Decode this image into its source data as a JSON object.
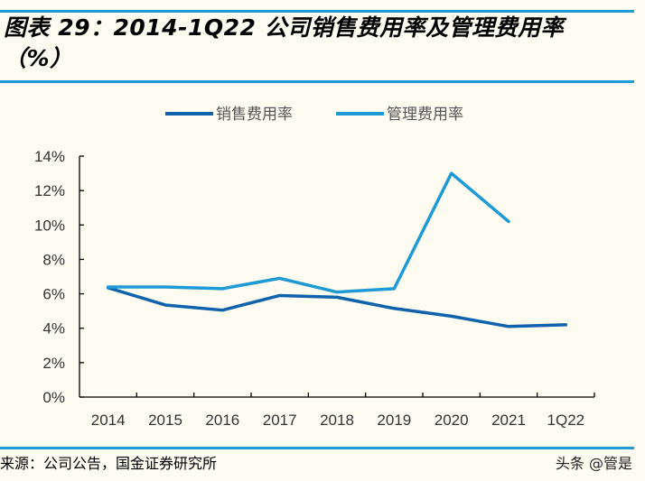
{
  "title_line1": "图表 29：2014-1Q22 公司销售费用率及管理费用率",
  "title_line2": "（%）",
  "source": "来源：公司公告，国金证券研究所",
  "watermark": "头条 @管是",
  "chart_data": {
    "type": "line",
    "title": "",
    "xlabel": "",
    "ylabel": "",
    "categories": [
      "2014",
      "2015",
      "2016",
      "2017",
      "2018",
      "2019",
      "2020",
      "2021",
      "1Q22"
    ],
    "ylim": [
      0,
      14
    ],
    "yticks": [
      "0%",
      "2%",
      "4%",
      "6%",
      "8%",
      "10%",
      "12%",
      "14%"
    ],
    "grid": false,
    "legend": "top-center",
    "series": [
      {
        "name": "销售费用率",
        "color": "#0f62ac",
        "values": [
          6.35,
          5.35,
          5.05,
          5.9,
          5.8,
          5.15,
          4.7,
          4.1,
          4.2
        ]
      },
      {
        "name": "管理费用率",
        "color": "#1e9ad6",
        "values": [
          6.4,
          6.4,
          6.3,
          6.9,
          6.1,
          6.3,
          13.0,
          10.2,
          null
        ]
      }
    ]
  }
}
